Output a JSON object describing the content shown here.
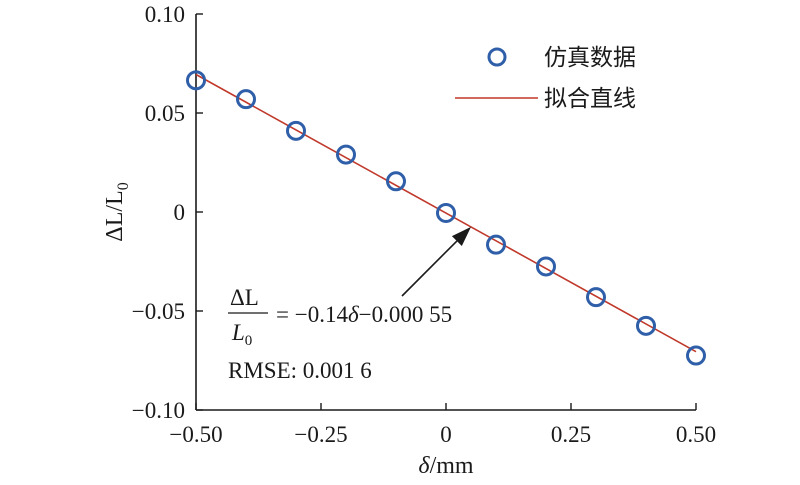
{
  "chart_data": {
    "type": "scatter",
    "xlabel_symbol": "δ",
    "xlabel_unit": "/mm",
    "ylabel": "ΔL/L",
    "ylabel_sub": "0",
    "xlim": [
      -0.5,
      0.5
    ],
    "ylim": [
      -0.1,
      0.1
    ],
    "x_ticks": [
      -0.5,
      -0.25,
      0,
      0.25,
      0.5
    ],
    "x_tick_labels": [
      "−0.50",
      "−0.25",
      "0",
      "0.25",
      "0.50"
    ],
    "y_ticks": [
      -0.1,
      -0.05,
      0,
      0.05,
      0.1
    ],
    "y_tick_labels": [
      "−0.10",
      "−0.05",
      "0",
      "0.05",
      "0.10"
    ],
    "grid": false,
    "legend_position": "top-right",
    "series": [
      {
        "name": "仿真数据",
        "kind": "markers",
        "color": "#2f5fa8",
        "x": [
          -0.5,
          -0.4,
          -0.3,
          -0.2,
          -0.1,
          0.0,
          0.1,
          0.2,
          0.3,
          0.4,
          0.5
        ],
        "y": [
          0.0665,
          0.057,
          0.041,
          0.029,
          0.0155,
          -0.0005,
          -0.0165,
          -0.0275,
          -0.043,
          -0.0575,
          -0.0725
        ]
      },
      {
        "name": "拟合直线",
        "kind": "line",
        "color": "#c0392b",
        "slope": -0.14,
        "intercept": -0.00055
      }
    ],
    "annotation": {
      "eq_numerator": "ΔL",
      "eq_denominator": "L",
      "eq_denominator_sub": "0",
      "eq_rhs_prefix": "= −0.14",
      "eq_rhs_symbol": "δ",
      "eq_rhs_suffix": "−0.000 55",
      "rmse": "RMSE: 0.001 6",
      "arrow_target": [
        0.05,
        -0.0075
      ]
    }
  }
}
